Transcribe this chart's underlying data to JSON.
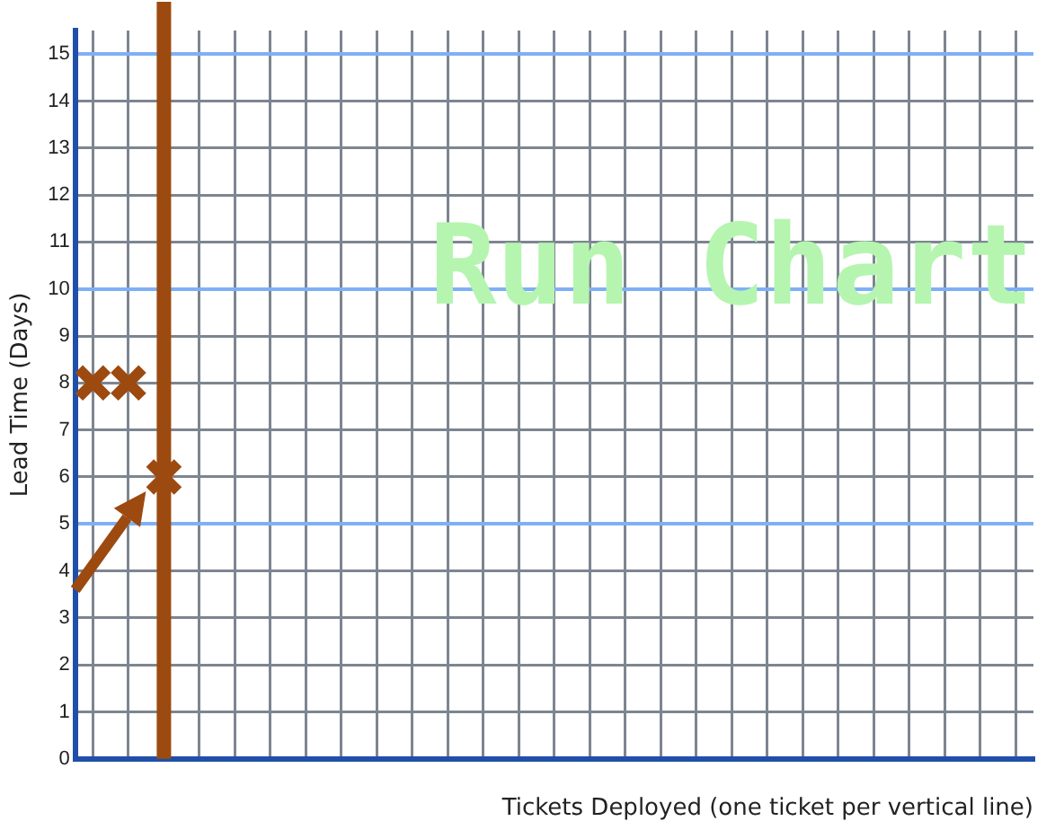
{
  "chart_data": {
    "type": "scatter",
    "title": "Run Chart",
    "xlabel": "Tickets Deployed (one ticket per vertical line)",
    "ylabel": "Lead Time (Days)",
    "categories": [
      null,
      null,
      null,
      null,
      null,
      null,
      null,
      null,
      null,
      null,
      null,
      null,
      null,
      null,
      null,
      null,
      null,
      null,
      null,
      null,
      null,
      null,
      null,
      null,
      null,
      null,
      null
    ],
    "series": [
      {
        "color": "#9c4a10",
        "values": [
          8,
          8,
          6,
          null,
          null,
          null,
          null,
          null,
          null,
          null,
          null,
          null,
          null,
          null,
          null,
          null,
          null,
          null,
          null,
          null,
          null,
          null,
          null,
          null,
          null,
          null,
          null
        ]
      }
    ],
    "ylim": [
      0,
      15.5
    ],
    "yticks": [
      0,
      1,
      2,
      3,
      4,
      5,
      6,
      7,
      8,
      9,
      10,
      11,
      12,
      13,
      14,
      15
    ],
    "ref_lines": [
      {
        "axis": "x",
        "color": "#9c4a10"
      }
    ],
    "grid": true,
    "marker": "cross",
    "tick_labels": "y"
  }
}
